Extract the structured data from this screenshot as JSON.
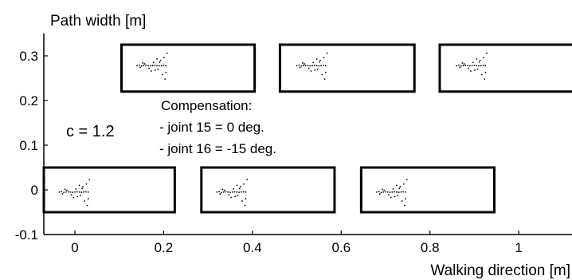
{
  "chart_data": {
    "type": "scatter",
    "xlabel": "Walking direction [m]",
    "ylabel": "Path width [m]",
    "xlim": [
      -0.07,
      1.12
    ],
    "ylim": [
      -0.1,
      0.35
    ],
    "xticks": [
      0,
      0.2,
      0.4,
      0.6,
      0.8,
      1
    ],
    "xtick_labels": [
      "0",
      "0.2",
      "0.4",
      "0.6",
      "0.8",
      "1"
    ],
    "yticks": [
      -0.1,
      0,
      0.1,
      0.2,
      0.3
    ],
    "ytick_labels": [
      "-0.1",
      "0",
      "0.1",
      "0.2",
      "0.3"
    ],
    "grid": false,
    "footprints": [
      {
        "x0": -0.07,
        "x1": 0.225,
        "y0": -0.05,
        "y1": 0.05
      },
      {
        "x0": 0.105,
        "x1": 0.405,
        "y0": 0.22,
        "y1": 0.325
      },
      {
        "x0": 0.285,
        "x1": 0.585,
        "y0": -0.05,
        "y1": 0.05
      },
      {
        "x0": 0.462,
        "x1": 0.765,
        "y0": 0.22,
        "y1": 0.325
      },
      {
        "x0": 0.645,
        "x1": 0.945,
        "y0": -0.05,
        "y1": 0.05
      },
      {
        "x0": 0.822,
        "x1": 1.125,
        "y0": 0.22,
        "y1": 0.325
      }
    ],
    "zmp_clusters": [
      {
        "cx": 0.0,
        "cy": -0.005
      },
      {
        "cx": 0.355,
        "cy": -0.005
      },
      {
        "cx": 0.715,
        "cy": -0.005
      },
      {
        "cx": 0.175,
        "cy": 0.278
      },
      {
        "cx": 0.535,
        "cy": 0.278
      },
      {
        "cx": 0.895,
        "cy": 0.278
      }
    ],
    "annotations": {
      "c_value": "c = 1.2",
      "comp_title": "Compensation:",
      "comp_line1": "- joint 15 =  0 deg.",
      "comp_line2": "- joint 16 = -15 deg."
    }
  }
}
